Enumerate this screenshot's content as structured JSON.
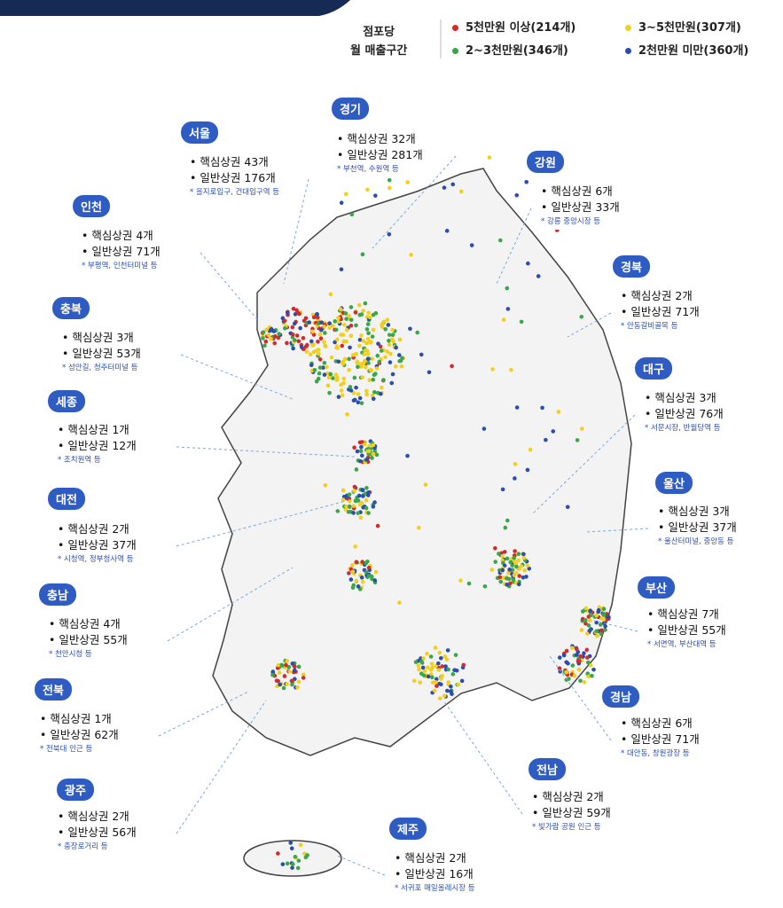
{
  "legend": {
    "title": [
      "점포당",
      "월 매출구간"
    ],
    "items": [
      {
        "label": "5천만원 이상(214개)",
        "color": "#d42a2a"
      },
      {
        "label": "3~5천만원(307개)",
        "color": "#f2cf1b"
      },
      {
        "label": "2~3천만원(346개)",
        "color": "#3aa64a"
      },
      {
        "label": "2천만원 미만(360개)",
        "color": "#2b4eae"
      }
    ]
  },
  "regions": [
    {
      "name": "경기",
      "core": "핵심상권 32개",
      "general": "일반상권 281개",
      "note": "부천역, 수원역 등"
    },
    {
      "name": "서울",
      "core": "핵심상권 43개",
      "general": "일반상권 176개",
      "note": "을지로입구, 건대입구역 등"
    },
    {
      "name": "강원",
      "core": "핵심상권 6개",
      "general": "일반상권 33개",
      "note": "강릉 중앙시장 등"
    },
    {
      "name": "인천",
      "core": "핵심상권 4개",
      "general": "일반상권 71개",
      "note": "부평역, 인천터미널 등"
    },
    {
      "name": "경북",
      "core": "핵심상권 2개",
      "general": "일반상권 71개",
      "note": "안동갈비골목 등"
    },
    {
      "name": "충북",
      "core": "핵심상권 3개",
      "general": "일반상권 53개",
      "note": "성안길, 청주터미널 등"
    },
    {
      "name": "대구",
      "core": "핵심상권 3개",
      "general": "일반상권 76개",
      "note": "서문시장, 반월당역 등"
    },
    {
      "name": "세종",
      "core": "핵심상권 1개",
      "general": "일반상권 12개",
      "note": "조치원역 등"
    },
    {
      "name": "울산",
      "core": "핵심상권 3개",
      "general": "일반상권 37개",
      "note": "울산터미널, 중앙동 등"
    },
    {
      "name": "대전",
      "core": "핵심상권 2개",
      "general": "일반상권 37개",
      "note": "시청역, 정부청사역 등"
    },
    {
      "name": "부산",
      "core": "핵심상권 7개",
      "general": "일반상권 55개",
      "note": "서면역, 부산대역 등"
    },
    {
      "name": "충남",
      "core": "핵심상권 4개",
      "general": "일반상권 55개",
      "note": "천안시청 등"
    },
    {
      "name": "전북",
      "core": "핵심상권 1개",
      "general": "일반상권 62개",
      "note": "전북대 인근 등"
    },
    {
      "name": "경남",
      "core": "핵심상권 6개",
      "general": "일반상권 71개",
      "note": "대안동, 창원광장 등"
    },
    {
      "name": "전남",
      "core": "핵심상권 2개",
      "general": "일반상권 59개",
      "note": "빛가람 공원 인근 등"
    },
    {
      "name": "광주",
      "core": "핵심상권 2개",
      "general": "일반상권 56개",
      "note": "충장로거리 등"
    },
    {
      "name": "제주",
      "core": "핵심상권 2개",
      "general": "일반상권 16개",
      "note": "서귀포 매일올레시장 등"
    }
  ]
}
